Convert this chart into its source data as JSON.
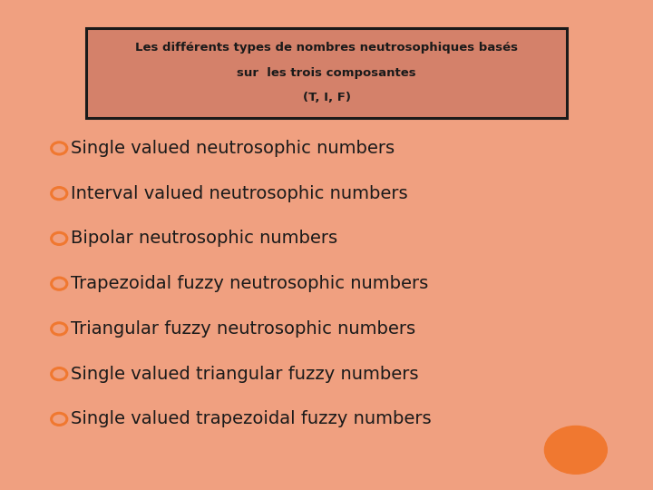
{
  "title_line1": "Les différents types de nombres neutrosophiques basés",
  "title_line2": "sur  les trois composantes",
  "title_line3": "(T, I, F)",
  "title_box_facecolor": "#d4816a",
  "title_box_edgecolor": "#1a1a1a",
  "title_text_color": "#1a1a1a",
  "bg_color": "#ffffff",
  "border_color": "#f0a080",
  "bullet_color": "#f07830",
  "text_color": "#1a1a1a",
  "items": [
    "Single valued neutrosophic numbers",
    "Interval valued neutrosophic numbers",
    "Bipolar neutrosophic numbers",
    "Trapezoidal fuzzy neutrosophic numbers",
    "Triangular fuzzy neutrosophic numbers",
    "Single valued triangular fuzzy numbers",
    "Single valued trapezoidal fuzzy numbers"
  ],
  "circle_color": "#f07830",
  "figsize": [
    7.2,
    5.4
  ],
  "dpi": 100,
  "border_width": 18,
  "border_color_hex": "#f0a080"
}
